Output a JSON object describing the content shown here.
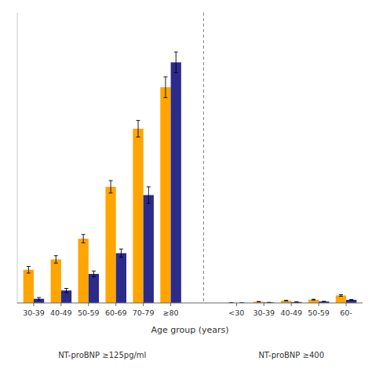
{
  "chart_data": {
    "type": "bar",
    "xlabel": "Age group (years)",
    "categories": [
      "30-39",
      "40-49",
      "50-59",
      "60-69",
      "70-79",
      "≥80",
      "<30",
      "30-39",
      "40-49",
      "50-59",
      "60-"
    ],
    "series": [
      {
        "color": "#FFA500",
        "values": [
          8.0,
          10.5,
          15.5,
          28.0,
          42.0,
          52.0,
          0.05,
          0.3,
          0.55,
          0.8,
          1.8
        ],
        "errors": [
          0.8,
          0.9,
          1.0,
          1.5,
          2.0,
          2.5,
          0.02,
          0.05,
          0.07,
          0.09,
          0.18
        ]
      },
      {
        "color": "#2B2B8C",
        "values": [
          1.0,
          3.0,
          7.0,
          12.0,
          26.0,
          58.0,
          0.02,
          0.12,
          0.22,
          0.35,
          0.75
        ],
        "errors": [
          0.3,
          0.5,
          0.7,
          1.0,
          2.0,
          2.5,
          0.01,
          0.02,
          0.03,
          0.04,
          0.08
        ]
      }
    ],
    "annotations": [
      "NT-proBNP ≥125pg/ml",
      "NT-proBNP ≥400"
    ],
    "ylim": [
      0,
      70
    ],
    "yticks": [],
    "tick_labels": "x"
  }
}
